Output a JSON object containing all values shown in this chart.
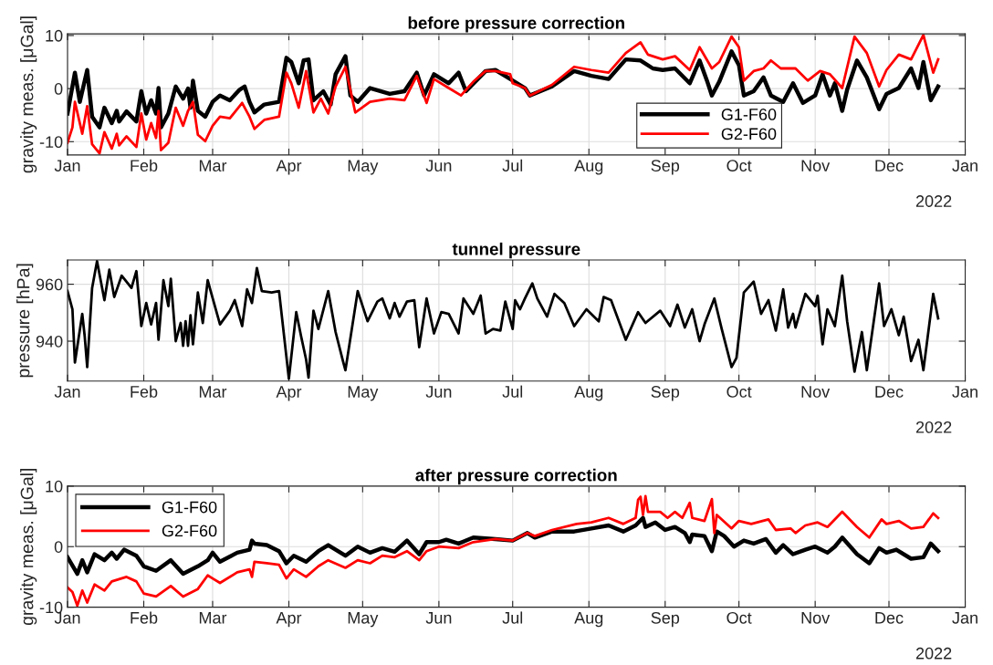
{
  "chart_data": [
    {
      "type": "line",
      "title": "before pressure correction",
      "ylabel": "gravity meas. [μGal]",
      "xlim": [
        "2021-01-01",
        "2022-01-01"
      ],
      "ylim": [
        -12.5,
        10.3
      ],
      "yticks": [
        -10,
        0,
        10
      ],
      "xticks": [
        {
          "value": "2021-01-01",
          "label": "Jan"
        },
        {
          "value": "2021-02-01",
          "label": "Feb"
        },
        {
          "value": "2021-03-01",
          "label": "Mar"
        },
        {
          "value": "2021-04-01",
          "label": "Apr"
        },
        {
          "value": "2021-05-01",
          "label": "May"
        },
        {
          "value": "2021-06-01",
          "label": "Jun"
        },
        {
          "value": "2021-07-01",
          "label": "Jul"
        },
        {
          "value": "2021-08-01",
          "label": "Aug"
        },
        {
          "value": "2021-09-01",
          "label": "Sep"
        },
        {
          "value": "2021-10-01",
          "label": "Oct"
        },
        {
          "value": "2021-11-01",
          "label": "Nov"
        },
        {
          "value": "2021-12-01",
          "label": "Dec"
        },
        {
          "value": "2022-01-01",
          "label": "Jan"
        }
      ],
      "grid": true,
      "legend": "bottom",
      "annotations": [
        "2022"
      ],
      "series": [
        {
          "name": "G1-F60",
          "color": "#000000",
          "x": [
            "2021-01-01",
            "2021-01-04",
            "2021-01-06",
            "2021-01-09",
            "2021-01-11",
            "2021-01-14",
            "2021-01-16",
            "2021-01-19",
            "2021-01-21",
            "2021-01-22",
            "2021-01-25",
            "2021-01-29",
            "2021-01-31",
            "2021-02-02",
            "2021-02-04",
            "2021-02-06",
            "2021-02-07",
            "2021-02-08",
            "2021-02-11",
            "2021-02-14",
            "2021-02-17",
            "2021-02-19",
            "2021-02-20",
            "2021-02-21",
            "2021-02-23",
            "2021-02-26",
            "2021-03-01",
            "2021-03-04",
            "2021-03-08",
            "2021-03-12",
            "2021-03-14",
            "2021-03-16",
            "2021-03-18",
            "2021-03-22",
            "2021-03-28",
            "2021-03-31",
            "2021-04-02",
            "2021-04-05",
            "2021-04-07",
            "2021-04-09",
            "2021-04-11",
            "2021-04-15",
            "2021-04-18",
            "2021-04-20",
            "2021-04-24",
            "2021-04-26",
            "2021-04-29",
            "2021-05-04",
            "2021-05-12",
            "2021-05-18",
            "2021-05-23",
            "2021-05-26",
            "2021-05-30",
            "2021-06-05",
            "2021-06-09",
            "2021-06-12",
            "2021-06-20",
            "2021-06-24",
            "2021-06-30",
            "2021-07-06",
            "2021-07-08",
            "2021-07-17",
            "2021-07-26",
            "2021-08-02",
            "2021-08-09",
            "2021-08-16",
            "2021-08-22",
            "2021-08-27",
            "2021-08-31",
            "2021-09-05",
            "2021-09-11",
            "2021-09-15",
            "2021-09-18",
            "2021-09-20",
            "2021-09-23",
            "2021-09-28",
            "2021-10-01",
            "2021-10-03",
            "2021-10-07",
            "2021-10-11",
            "2021-10-14",
            "2021-10-19",
            "2021-10-23",
            "2021-10-27",
            "2021-11-01",
            "2021-11-04",
            "2021-11-07",
            "2021-11-09",
            "2021-11-12",
            "2021-11-14",
            "2021-11-18",
            "2021-11-22",
            "2021-11-27",
            "2021-11-30",
            "2021-12-05",
            "2021-12-10",
            "2021-12-13",
            "2021-12-15",
            "2021-12-18",
            "2021-12-21"
          ],
          "values": [
            -4.7,
            3,
            -2.5,
            3.5,
            -5.3,
            -7.3,
            -3.6,
            -6.5,
            -4.2,
            -6.2,
            -4.3,
            -6.2,
            -0.5,
            -4.7,
            -2.2,
            -4.7,
            0.1,
            -7.3,
            -4.7,
            0.4,
            -1.9,
            0,
            -3.6,
            1.5,
            -4.2,
            -5.3,
            -2.5,
            -1.3,
            -2.2,
            -0.2,
            0.4,
            -2.5,
            -4.5,
            -3,
            -2.5,
            5.8,
            5,
            1,
            5.3,
            5.5,
            -2.2,
            -0.5,
            -3,
            2.7,
            6.1,
            -1.3,
            -2.5,
            0.1,
            -1,
            -0.5,
            3,
            -1.3,
            2.7,
            1,
            3,
            -0.5,
            3.3,
            3.5,
            1.8,
            0.1,
            -1.3,
            0.4,
            3.3,
            2.4,
            1.8,
            5.5,
            5.3,
            3.8,
            3.5,
            3.8,
            1,
            5.3,
            1.5,
            -1.3,
            1.3,
            7,
            4.4,
            -1.3,
            -0.5,
            2.1,
            -1.3,
            -2.5,
            1,
            -2.7,
            -1.3,
            2.7,
            -1.3,
            1,
            -4.2,
            -0.2,
            5.3,
            2.1,
            -3.9,
            -1,
            0.1,
            3.8,
            0.1,
            5,
            -2.2,
            0.4
          ]
        },
        {
          "name": "G2-F60",
          "color": "#ff0000",
          "x": [
            "2021-01-01",
            "2021-01-03",
            "2021-01-04",
            "2021-01-07",
            "2021-01-09",
            "2021-01-11",
            "2021-01-14",
            "2021-01-16",
            "2021-01-19",
            "2021-01-21",
            "2021-01-22",
            "2021-01-25",
            "2021-01-29",
            "2021-01-31",
            "2021-02-02",
            "2021-02-04",
            "2021-02-06",
            "2021-02-07",
            "2021-02-08",
            "2021-02-11",
            "2021-02-14",
            "2021-02-17",
            "2021-02-19",
            "2021-02-21",
            "2021-02-23",
            "2021-02-26",
            "2021-03-01",
            "2021-03-04",
            "2021-03-08",
            "2021-03-13",
            "2021-03-16",
            "2021-03-18",
            "2021-03-22",
            "2021-03-28",
            "2021-03-31",
            "2021-04-02",
            "2021-04-05",
            "2021-04-08",
            "2021-04-11",
            "2021-04-14",
            "2021-04-17",
            "2021-04-20",
            "2021-04-24",
            "2021-04-28",
            "2021-05-04",
            "2021-05-12",
            "2021-05-18",
            "2021-05-23",
            "2021-05-27",
            "2021-05-30",
            "2021-06-05",
            "2021-06-10",
            "2021-06-15",
            "2021-06-20",
            "2021-06-24",
            "2021-06-30",
            "2021-07-01",
            "2021-07-06",
            "2021-07-08",
            "2021-07-17",
            "2021-07-26",
            "2021-08-02",
            "2021-08-09",
            "2021-08-16",
            "2021-08-22",
            "2021-08-25",
            "2021-08-31",
            "2021-09-05",
            "2021-09-11",
            "2021-09-15",
            "2021-09-20",
            "2021-09-23",
            "2021-09-28",
            "2021-10-01",
            "2021-10-03",
            "2021-10-07",
            "2021-10-11",
            "2021-10-14",
            "2021-10-18",
            "2021-10-24",
            "2021-10-29",
            "2021-11-03",
            "2021-11-07",
            "2021-11-12",
            "2021-11-17",
            "2021-11-22",
            "2021-11-27",
            "2021-11-30",
            "2021-12-05",
            "2021-12-10",
            "2021-12-15",
            "2021-12-19",
            "2021-12-21"
          ],
          "values": [
            -10.2,
            -7.3,
            -2.5,
            -8.5,
            -3.3,
            -10.5,
            -12.2,
            -8.2,
            -11.3,
            -8.5,
            -10.7,
            -9,
            -11,
            -4.7,
            -9.6,
            -6.5,
            -9.3,
            -4.2,
            -11.6,
            -10.2,
            -3.6,
            -7,
            -4.2,
            -2.5,
            -8.7,
            -9.9,
            -7,
            -5.3,
            -5.6,
            -2.7,
            -5.3,
            -7.6,
            -5.9,
            -5.3,
            3,
            1,
            -3.6,
            3.3,
            -4.5,
            -1.9,
            -4.7,
            0.4,
            4.1,
            -4.5,
            -2.5,
            -1.9,
            -2.2,
            2.4,
            -2.7,
            1.8,
            0.1,
            -1.3,
            1.3,
            3.3,
            3.3,
            2.7,
            1,
            0.1,
            -1.3,
            0.7,
            4.1,
            3.5,
            3,
            6.7,
            8.7,
            6.4,
            5.5,
            6.1,
            3.5,
            7.8,
            3.8,
            5,
            9.8,
            7.8,
            1.5,
            3.3,
            3.8,
            5.3,
            3.8,
            3.8,
            1.5,
            3.3,
            2.7,
            0.1,
            9.8,
            6.7,
            0.4,
            3.5,
            6.4,
            5.5,
            10.1,
            3,
            5.5
          ]
        }
      ]
    },
    {
      "type": "line",
      "title": "tunnel pressure",
      "ylabel": "pressure [hPa]",
      "xlim": [
        "2021-01-01",
        "2022-01-01"
      ],
      "ylim": [
        926,
        968.5
      ],
      "yticks": [
        940,
        960
      ],
      "xticks": [
        {
          "value": "2021-01-01",
          "label": "Jan"
        },
        {
          "value": "2021-02-01",
          "label": "Feb"
        },
        {
          "value": "2021-03-01",
          "label": "Mar"
        },
        {
          "value": "2021-04-01",
          "label": "Apr"
        },
        {
          "value": "2021-05-01",
          "label": "May"
        },
        {
          "value": "2021-06-01",
          "label": "Jun"
        },
        {
          "value": "2021-07-01",
          "label": "Jul"
        },
        {
          "value": "2021-08-01",
          "label": "Aug"
        },
        {
          "value": "2021-09-01",
          "label": "Sep"
        },
        {
          "value": "2021-10-01",
          "label": "Oct"
        },
        {
          "value": "2021-11-01",
          "label": "Nov"
        },
        {
          "value": "2021-12-01",
          "label": "Dec"
        },
        {
          "value": "2022-01-01",
          "label": "Jan"
        }
      ],
      "grid": true,
      "annotations": [
        "2022"
      ],
      "series": [
        {
          "color": "#000000",
          "x": [
            "2021-01-01",
            "2021-01-03",
            "2021-01-04",
            "2021-01-07",
            "2021-01-08",
            "2021-01-09",
            "2021-01-11",
            "2021-01-13",
            "2021-01-16",
            "2021-01-18",
            "2021-01-20",
            "2021-01-23",
            "2021-01-27",
            "2021-01-29",
            "2021-01-31",
            "2021-02-02",
            "2021-02-04",
            "2021-02-06",
            "2021-02-07",
            "2021-02-09",
            "2021-02-11",
            "2021-02-12",
            "2021-02-14",
            "2021-02-16",
            "2021-02-17",
            "2021-02-18",
            "2021-02-19",
            "2021-02-20",
            "2021-02-21",
            "2021-02-23",
            "2021-02-25",
            "2021-02-27",
            "2021-02-28",
            "2021-03-04",
            "2021-03-08",
            "2021-03-10",
            "2021-03-13",
            "2021-03-15",
            "2021-03-17",
            "2021-03-19",
            "2021-03-21",
            "2021-03-25",
            "2021-03-28",
            "2021-04-01",
            "2021-04-04",
            "2021-04-06",
            "2021-04-08",
            "2021-04-09",
            "2021-04-11",
            "2021-04-13",
            "2021-04-17",
            "2021-04-20",
            "2021-04-23",
            "2021-04-24",
            "2021-04-29",
            "2021-05-03",
            "2021-05-07",
            "2021-05-09",
            "2021-05-12",
            "2021-05-14",
            "2021-05-16",
            "2021-05-19",
            "2021-05-22",
            "2021-05-24",
            "2021-05-27",
            "2021-05-30",
            "2021-06-02",
            "2021-06-05",
            "2021-06-09",
            "2021-06-11",
            "2021-06-15",
            "2021-06-18",
            "2021-06-20",
            "2021-06-23",
            "2021-06-26",
            "2021-06-28",
            "2021-07-01",
            "2021-07-02",
            "2021-07-04",
            "2021-07-06",
            "2021-07-09",
            "2021-07-11",
            "2021-07-15",
            "2021-07-18",
            "2021-07-22",
            "2021-07-26",
            "2021-07-31",
            "2021-08-05",
            "2021-08-07",
            "2021-08-10",
            "2021-08-16",
            "2021-08-21",
            "2021-08-24",
            "2021-08-30",
            "2021-09-03",
            "2021-09-06",
            "2021-09-09",
            "2021-09-12",
            "2021-09-15",
            "2021-09-17",
            "2021-09-21",
            "2021-09-24",
            "2021-09-28",
            "2021-09-30",
            "2021-10-03",
            "2021-10-07",
            "2021-10-10",
            "2021-10-13",
            "2021-10-16",
            "2021-10-19",
            "2021-10-21",
            "2021-10-23",
            "2021-10-24",
            "2021-10-28",
            "2021-11-01",
            "2021-11-02",
            "2021-11-04",
            "2021-11-06",
            "2021-11-09",
            "2021-11-12",
            "2021-11-14",
            "2021-11-17",
            "2021-11-20",
            "2021-11-22",
            "2021-11-27",
            "2021-11-29",
            "2021-12-02",
            "2021-12-05",
            "2021-12-07",
            "2021-12-10",
            "2021-12-13",
            "2021-12-15",
            "2021-12-19",
            "2021-12-21"
          ],
          "values": [
            957.6,
            951.2,
            932.5,
            949.6,
            941.6,
            930.9,
            958.7,
            968.1,
            954.4,
            965.1,
            955.5,
            963,
            958.7,
            964.6,
            945.3,
            953.4,
            945.9,
            953.4,
            940.5,
            961.4,
            952.3,
            961.9,
            940,
            946.4,
            938.4,
            947,
            938.4,
            949.1,
            938.9,
            957.1,
            946.4,
            961.4,
            958.2,
            945.9,
            950.7,
            954.4,
            945.3,
            958.2,
            953.4,
            965.7,
            957.6,
            957.1,
            957.6,
            926.8,
            950.2,
            941.6,
            933.6,
            927.2,
            950.7,
            944.3,
            957.6,
            943.2,
            933,
            929.8,
            957.6,
            947,
            953.9,
            955,
            948,
            953.4,
            948.6,
            953.9,
            954.4,
            937.9,
            955,
            942.7,
            950.2,
            949.6,
            942.7,
            955,
            949.6,
            956,
            942.7,
            944.3,
            943.7,
            953.9,
            944.3,
            954.4,
            951.2,
            955,
            960.3,
            955,
            948.6,
            956.6,
            953.4,
            945.3,
            951.2,
            947,
            955.5,
            954.4,
            940.5,
            950.2,
            946.4,
            950.7,
            945.3,
            952.8,
            944.8,
            951.2,
            940,
            945.9,
            955,
            944.3,
            930.9,
            934.1,
            957.1,
            960.9,
            949.6,
            954.4,
            943.7,
            958.2,
            944.8,
            949.6,
            944.8,
            956.6,
            952.3,
            956,
            938.9,
            951.2,
            945.3,
            963,
            947,
            929.3,
            943.2,
            929.8,
            960.3,
            945.3,
            951.2,
            942.1,
            948.6,
            933,
            940.5,
            929.8,
            956.6,
            948
          ]
        }
      ]
    },
    {
      "type": "line",
      "title": "after pressure correction",
      "ylabel": "gravity meas. [μGal]",
      "xlim": [
        "2021-01-01",
        "2022-01-01"
      ],
      "ylim": [
        -10,
        10
      ],
      "yticks": [
        -10,
        0,
        10
      ],
      "xticks": [
        {
          "value": "2021-01-01",
          "label": "Jan"
        },
        {
          "value": "2021-02-01",
          "label": "Feb"
        },
        {
          "value": "2021-03-01",
          "label": "Mar"
        },
        {
          "value": "2021-04-01",
          "label": "Apr"
        },
        {
          "value": "2021-05-01",
          "label": "May"
        },
        {
          "value": "2021-06-01",
          "label": "Jun"
        },
        {
          "value": "2021-07-01",
          "label": "Jul"
        },
        {
          "value": "2021-08-01",
          "label": "Aug"
        },
        {
          "value": "2021-09-01",
          "label": "Sep"
        },
        {
          "value": "2021-10-01",
          "label": "Oct"
        },
        {
          "value": "2021-11-01",
          "label": "Nov"
        },
        {
          "value": "2021-12-01",
          "label": "Dec"
        },
        {
          "value": "2022-01-01",
          "label": "Jan"
        }
      ],
      "grid": true,
      "legend": "top left",
      "annotations": [
        "2022"
      ],
      "series": [
        {
          "name": "G1-F60",
          "color": "#000000",
          "x": [
            "2021-01-01",
            "2021-01-05",
            "2021-01-07",
            "2021-01-09",
            "2021-01-12",
            "2021-01-16",
            "2021-01-19",
            "2021-01-21",
            "2021-01-24",
            "2021-01-29",
            "2021-02-01",
            "2021-02-06",
            "2021-02-12",
            "2021-02-17",
            "2021-02-23",
            "2021-02-27",
            "2021-03-01",
            "2021-03-04",
            "2021-03-11",
            "2021-03-16",
            "2021-03-17",
            "2021-03-18",
            "2021-03-23",
            "2021-03-28",
            "2021-03-31",
            "2021-04-03",
            "2021-04-08",
            "2021-04-13",
            "2021-04-17",
            "2021-04-24",
            "2021-04-29",
            "2021-05-04",
            "2021-05-09",
            "2021-05-14",
            "2021-05-19",
            "2021-05-24",
            "2021-05-27",
            "2021-06-01",
            "2021-06-04",
            "2021-06-09",
            "2021-06-15",
            "2021-06-24",
            "2021-07-01",
            "2021-07-07",
            "2021-07-10",
            "2021-07-17",
            "2021-07-26",
            "2021-08-02",
            "2021-08-09",
            "2021-08-15",
            "2021-08-20",
            "2021-08-23",
            "2021-08-24",
            "2021-08-28",
            "2021-09-01",
            "2021-09-05",
            "2021-09-09",
            "2021-09-11",
            "2021-09-12",
            "2021-09-17",
            "2021-09-20",
            "2021-09-22",
            "2021-09-25",
            "2021-09-29",
            "2021-10-03",
            "2021-10-07",
            "2021-10-12",
            "2021-10-16",
            "2021-10-19",
            "2021-10-23",
            "2021-10-28",
            "2021-11-01",
            "2021-11-06",
            "2021-11-09",
            "2021-11-12",
            "2021-11-18",
            "2021-11-23",
            "2021-11-27",
            "2021-11-30",
            "2021-12-04",
            "2021-12-10",
            "2021-12-15",
            "2021-12-18",
            "2021-12-21"
          ],
          "values": [
            -1.75,
            -4.5,
            -2.25,
            -4.25,
            -1.25,
            -2.25,
            -1,
            -2,
            -0.5,
            -1.5,
            -3.25,
            -4,
            -2.25,
            -4.5,
            -3.25,
            -2.25,
            -1,
            -2.5,
            -1,
            -0.5,
            1,
            0.5,
            0.25,
            -0.75,
            -2.75,
            -1.5,
            -2.5,
            -0.75,
            0.25,
            -1.5,
            0,
            -1,
            -0.25,
            -0.85,
            1,
            -1.25,
            0.75,
            0.75,
            1.15,
            0.5,
            1.5,
            1.25,
            1,
            2.25,
            1.5,
            2.5,
            2.5,
            3,
            3.5,
            2.5,
            3.5,
            4.75,
            3.25,
            4,
            2.75,
            3.25,
            2.25,
            0.75,
            2,
            1.75,
            -0.75,
            2.5,
            1.75,
            0,
            1,
            0.5,
            1.25,
            -1,
            0.25,
            -1.25,
            -0.5,
            0,
            -1,
            0,
            1.5,
            -1.25,
            -2.75,
            -0.25,
            -1,
            -0.5,
            -2,
            -1.75,
            0.5,
            -0.75
          ]
        },
        {
          "name": "G2-F60",
          "color": "#ff0000",
          "x": [
            "2021-01-01",
            "2021-01-03",
            "2021-01-05",
            "2021-01-07",
            "2021-01-09",
            "2021-01-12",
            "2021-01-16",
            "2021-01-19",
            "2021-01-25",
            "2021-01-29",
            "2021-02-01",
            "2021-02-06",
            "2021-02-12",
            "2021-02-17",
            "2021-02-23",
            "2021-02-27",
            "2021-03-01",
            "2021-03-04",
            "2021-03-11",
            "2021-03-16",
            "2021-03-17",
            "2021-03-18",
            "2021-03-23",
            "2021-03-28",
            "2021-03-31",
            "2021-04-03",
            "2021-04-08",
            "2021-04-13",
            "2021-04-17",
            "2021-04-24",
            "2021-04-29",
            "2021-05-04",
            "2021-05-09",
            "2021-05-14",
            "2021-05-19",
            "2021-05-24",
            "2021-05-27",
            "2021-06-01",
            "2021-06-09",
            "2021-06-15",
            "2021-06-24",
            "2021-07-01",
            "2021-07-07",
            "2021-07-10",
            "2021-07-17",
            "2021-07-27",
            "2021-08-02",
            "2021-08-09",
            "2021-08-15",
            "2021-08-20",
            "2021-08-21",
            "2021-08-22",
            "2021-08-23",
            "2021-08-24",
            "2021-08-25",
            "2021-08-30",
            "2021-09-02",
            "2021-09-05",
            "2021-09-08",
            "2021-09-11",
            "2021-09-12",
            "2021-09-17",
            "2021-09-20",
            "2021-09-21",
            "2021-09-22",
            "2021-09-28",
            "2021-10-01",
            "2021-10-06",
            "2021-10-13",
            "2021-10-16",
            "2021-10-22",
            "2021-10-24",
            "2021-10-28",
            "2021-11-02",
            "2021-11-06",
            "2021-11-12",
            "2021-11-18",
            "2021-11-23",
            "2021-11-28",
            "2021-11-30",
            "2021-12-05",
            "2021-12-10",
            "2021-12-15",
            "2021-12-19",
            "2021-12-21"
          ],
          "values": [
            -6.75,
            -7.5,
            -9.75,
            -7.25,
            -9.25,
            -6.25,
            -7.25,
            -5.75,
            -5,
            -5.75,
            -7.75,
            -8.25,
            -6.5,
            -8.25,
            -7,
            -4.75,
            -5.25,
            -6,
            -4.25,
            -3.75,
            -5,
            -2.5,
            -2.75,
            -3,
            -5.25,
            -3.75,
            -5,
            -3.25,
            -2.25,
            -3.5,
            -2.25,
            -2.75,
            -1.5,
            -1.75,
            -0.75,
            -2.25,
            -0.75,
            0,
            -0.25,
            0.75,
            1.25,
            1,
            2.25,
            1.75,
            2.75,
            3.75,
            4,
            4.75,
            3.75,
            4.75,
            7.75,
            8.25,
            5.25,
            8.35,
            5.75,
            5.75,
            4.75,
            5.75,
            4.75,
            7.25,
            4.75,
            4.25,
            7.85,
            2.25,
            5.25,
            3,
            4.25,
            3.75,
            4.5,
            2.75,
            3,
            2.25,
            3.5,
            4,
            3.25,
            5.75,
            3.25,
            1.5,
            4.5,
            3.75,
            4.25,
            3,
            3.25,
            5.5,
            4.75
          ]
        }
      ]
    }
  ]
}
